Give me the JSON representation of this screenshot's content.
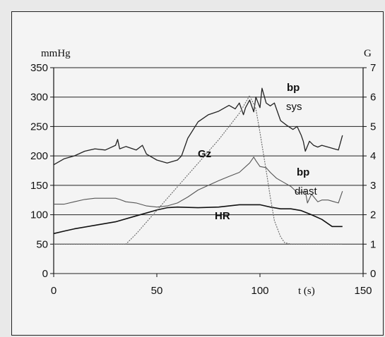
{
  "chart_data": {
    "type": "line",
    "title": "",
    "y_left_label": "mmHg",
    "y_right_label": "G",
    "x_label": "t (s)",
    "xlim": [
      0,
      150
    ],
    "ylim_left": [
      0,
      350
    ],
    "ylim_right": [
      0,
      7
    ],
    "x_ticks": [
      "0",
      "50",
      "100",
      "150"
    ],
    "y_left_ticks": [
      "0",
      "50",
      "100",
      "150",
      "200",
      "250",
      "300",
      "350"
    ],
    "y_right_ticks": [
      "0",
      "1",
      "2",
      "3",
      "4",
      "5",
      "6",
      "7"
    ],
    "grid": "horizontal",
    "legend": "none",
    "series": [
      {
        "name": "bp sys",
        "axis": "left",
        "x": [
          0,
          5,
          10,
          15,
          20,
          25,
          30,
          31,
          32,
          35,
          40,
          43,
          45,
          50,
          55,
          60,
          62,
          65,
          70,
          75,
          80,
          83,
          85,
          88,
          90,
          92,
          93,
          95,
          97,
          98,
          100,
          101,
          103,
          105,
          107,
          110,
          113,
          116,
          118,
          120,
          121,
          122,
          124,
          126,
          128,
          130,
          133,
          136,
          138,
          140
        ],
        "y": [
          185,
          195,
          200,
          208,
          212,
          210,
          218,
          228,
          212,
          216,
          210,
          218,
          203,
          193,
          188,
          193,
          200,
          230,
          258,
          270,
          276,
          282,
          286,
          280,
          290,
          270,
          282,
          295,
          275,
          300,
          282,
          315,
          290,
          285,
          290,
          260,
          252,
          245,
          250,
          235,
          225,
          208,
          225,
          218,
          215,
          218,
          215,
          212,
          210,
          235
        ]
      },
      {
        "name": "bp diast",
        "axis": "left",
        "x": [
          0,
          5,
          10,
          15,
          20,
          25,
          30,
          32,
          35,
          40,
          45,
          50,
          55,
          60,
          65,
          70,
          75,
          80,
          85,
          90,
          95,
          97,
          98,
          100,
          103,
          105,
          108,
          110,
          113,
          115,
          118,
          120,
          122,
          123,
          125,
          128,
          130,
          133,
          136,
          138,
          140
        ],
        "y": [
          118,
          118,
          122,
          126,
          128,
          128,
          128,
          126,
          122,
          120,
          115,
          113,
          115,
          120,
          130,
          142,
          150,
          158,
          165,
          172,
          188,
          198,
          192,
          182,
          180,
          172,
          162,
          158,
          152,
          148,
          138,
          138,
          140,
          120,
          135,
          122,
          125,
          125,
          122,
          120,
          140
        ]
      },
      {
        "name": "HR",
        "axis": "left",
        "x": [
          0,
          5,
          10,
          20,
          30,
          40,
          50,
          55,
          60,
          70,
          80,
          90,
          100,
          105,
          110,
          115,
          120,
          125,
          130,
          135,
          140
        ],
        "y": [
          68,
          72,
          76,
          82,
          88,
          98,
          108,
          112,
          113,
          112,
          113,
          117,
          117,
          113,
          110,
          110,
          107,
          100,
          92,
          80,
          80
        ]
      },
      {
        "name": "Gz",
        "axis": "right",
        "x": [
          0,
          10,
          20,
          30,
          35,
          40,
          50,
          60,
          70,
          80,
          90,
          95,
          98,
          100,
          103,
          105,
          107,
          110,
          112,
          115,
          120,
          130,
          140
        ],
        "y": [
          1,
          1,
          1,
          1,
          1,
          1.35,
          2.15,
          2.95,
          3.75,
          4.55,
          5.45,
          6.05,
          5.6,
          4.8,
          3.5,
          2.6,
          1.8,
          1.25,
          1.05,
          1,
          1,
          1,
          1
        ]
      }
    ],
    "annotations": [
      {
        "text": "bp",
        "at": "near bp sys peak"
      },
      {
        "text": "sys",
        "at": "below bp"
      },
      {
        "text": "Gz",
        "at": "on G ramp"
      },
      {
        "text": "bp",
        "at": "above diast"
      },
      {
        "text": "diast",
        "at": "below bp"
      },
      {
        "text": "HR",
        "at": "on HR line"
      }
    ]
  }
}
